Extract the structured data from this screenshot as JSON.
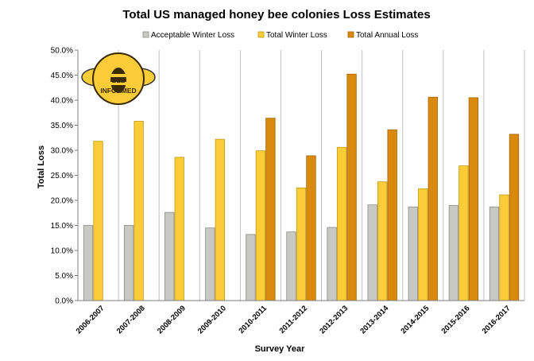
{
  "chart_data": {
    "type": "bar",
    "title": "Total US managed honey bee colonies Loss Estimates",
    "xlabel": "Survey Year",
    "ylabel": "Total Loss",
    "ylim": [
      0,
      50
    ],
    "y_ticks": [
      "0.0%",
      "5.0%",
      "10.0%",
      "15.0%",
      "20.0%",
      "25.0%",
      "30.0%",
      "35.0%",
      "40.0%",
      "45.0%",
      "50.0%"
    ],
    "grid": "vertical",
    "legend_position": "top",
    "categories": [
      "2006-2007",
      "2007-2008",
      "2008-2009",
      "2009-2010",
      "2010-2011",
      "2011-2012",
      "2012-2013",
      "2013-2014",
      "2014-2015",
      "2015-2016",
      "2016-2017"
    ],
    "series": [
      {
        "name": "Acceptable Winter Loss",
        "color": "#c8c8c4",
        "stroke": "#8a8a86",
        "values": [
          15.0,
          15.0,
          17.6,
          14.5,
          13.2,
          13.7,
          14.6,
          19.1,
          18.7,
          19.0,
          18.7
        ]
      },
      {
        "name": "Total Winter Loss",
        "color": "#f9cc38",
        "stroke": "#c49a12",
        "values": [
          31.8,
          35.8,
          28.6,
          32.2,
          29.9,
          22.5,
          30.6,
          23.7,
          22.3,
          26.9,
          21.1
        ]
      },
      {
        "name": "Total Annual Loss",
        "color": "#d9890b",
        "stroke": "#a36405",
        "values": [
          null,
          null,
          null,
          null,
          36.4,
          28.9,
          45.2,
          34.1,
          40.6,
          40.5,
          33.2
        ]
      }
    ]
  },
  "logo": {
    "line1": "BEE",
    "line2": "INFORMED"
  }
}
